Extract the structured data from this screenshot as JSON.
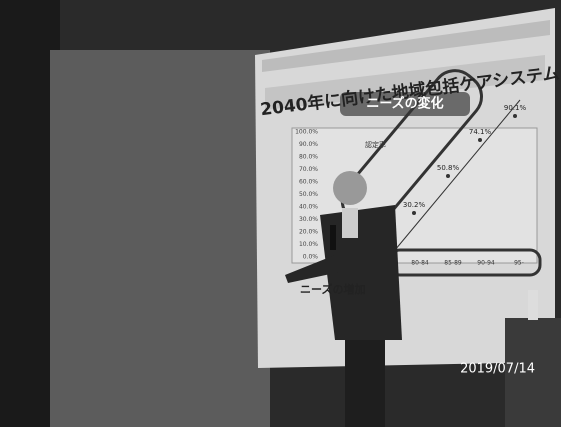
{
  "slide": {
    "title": "2040年に向けた地域包括ケアシステム",
    "subtitle": "ニーズの変化",
    "legend": "認定率",
    "yticks": [
      "100.0%",
      "90.0%",
      "80.0%",
      "70.0%",
      "60.0%",
      "50.0%",
      "40.0%",
      "30.0%",
      "20.0%",
      "10.0%",
      "0.0%"
    ],
    "value_labels": [
      "90.1%",
      "74.1%",
      "50.8%",
      "30.2%"
    ],
    "categories": [
      "80-84",
      "85-89",
      "90-94",
      "95-"
    ],
    "footer": "ニーズの増加"
  },
  "timestamp": "2019/07/14"
}
